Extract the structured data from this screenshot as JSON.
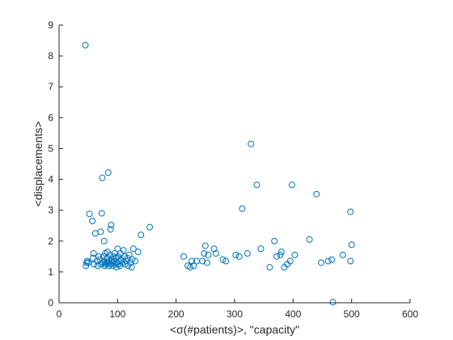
{
  "chart_data": {
    "type": "scatter",
    "title": "",
    "xlabel": "<σ(#patients)>, \"capacity\"",
    "ylabel": "<displacements>",
    "xlim": [
      0,
      600
    ],
    "ylim": [
      0,
      9
    ],
    "xticks": [
      0,
      100,
      200,
      300,
      400,
      500,
      600
    ],
    "yticks": [
      0,
      1,
      2,
      3,
      4,
      5,
      6,
      7,
      8,
      9
    ],
    "grid": false,
    "marker": "open-circle",
    "color": "#0072BD",
    "series": [
      {
        "points": [
          [
            45,
            8.35
          ],
          [
            46,
            1.2
          ],
          [
            47,
            1.3
          ],
          [
            48,
            1.35
          ],
          [
            50,
            1.3
          ],
          [
            52,
            2.88
          ],
          [
            57,
            2.65
          ],
          [
            58,
            1.45
          ],
          [
            59,
            1.6
          ],
          [
            60,
            1.25
          ],
          [
            62,
            2.25
          ],
          [
            65,
            1.35
          ],
          [
            66,
            1.2
          ],
          [
            68,
            1.5
          ],
          [
            70,
            1.4
          ],
          [
            71,
            2.3
          ],
          [
            72,
            1.25
          ],
          [
            73,
            2.9
          ],
          [
            74,
            4.05
          ],
          [
            75,
            1.3
          ],
          [
            76,
            1.5
          ],
          [
            77,
            2.0
          ],
          [
            77,
            1.35
          ],
          [
            78,
            1.2
          ],
          [
            79,
            1.6
          ],
          [
            80,
            1.25
          ],
          [
            81,
            1.3
          ],
          [
            82,
            1.45
          ],
          [
            83,
            1.65
          ],
          [
            84,
            4.22
          ],
          [
            84,
            1.3
          ],
          [
            85,
            1.2
          ],
          [
            86,
            1.35
          ],
          [
            87,
            1.55
          ],
          [
            88,
            2.38
          ],
          [
            88,
            1.25
          ],
          [
            89,
            2.52
          ],
          [
            90,
            1.4
          ],
          [
            91,
            1.3
          ],
          [
            92,
            1.2
          ],
          [
            93,
            1.5
          ],
          [
            94,
            1.35
          ],
          [
            95,
            1.6
          ],
          [
            96,
            1.25
          ],
          [
            97,
            1.45
          ],
          [
            98,
            1.15
          ],
          [
            99,
            1.3
          ],
          [
            100,
            1.75
          ],
          [
            101,
            1.5
          ],
          [
            102,
            1.25
          ],
          [
            103,
            1.35
          ],
          [
            104,
            1.2
          ],
          [
            105,
            1.6
          ],
          [
            106,
            1.4
          ],
          [
            108,
            1.3
          ],
          [
            110,
            1.7
          ],
          [
            112,
            1.5
          ],
          [
            113,
            1.25
          ],
          [
            115,
            1.35
          ],
          [
            117,
            1.45
          ],
          [
            118,
            1.2
          ],
          [
            120,
            1.55
          ],
          [
            122,
            1.3
          ],
          [
            124,
            1.15
          ],
          [
            125,
            1.4
          ],
          [
            127,
            1.75
          ],
          [
            130,
            1.35
          ],
          [
            135,
            1.65
          ],
          [
            140,
            2.2
          ],
          [
            155,
            2.45
          ],
          [
            213,
            1.5
          ],
          [
            220,
            1.2
          ],
          [
            224,
            1.15
          ],
          [
            227,
            1.35
          ],
          [
            230,
            1.2
          ],
          [
            235,
            1.35
          ],
          [
            245,
            1.35
          ],
          [
            248,
            1.6
          ],
          [
            250,
            1.85
          ],
          [
            253,
            1.3
          ],
          [
            255,
            1.55
          ],
          [
            265,
            1.75
          ],
          [
            268,
            1.6
          ],
          [
            280,
            1.4
          ],
          [
            285,
            1.35
          ],
          [
            302,
            1.55
          ],
          [
            308,
            1.5
          ],
          [
            313,
            3.05
          ],
          [
            322,
            1.6
          ],
          [
            328,
            5.15
          ],
          [
            338,
            3.82
          ],
          [
            345,
            1.75
          ],
          [
            360,
            1.15
          ],
          [
            368,
            2.0
          ],
          [
            372,
            1.5
          ],
          [
            378,
            1.55
          ],
          [
            380,
            1.65
          ],
          [
            385,
            1.15
          ],
          [
            390,
            1.25
          ],
          [
            395,
            1.35
          ],
          [
            398,
            3.82
          ],
          [
            403,
            1.55
          ],
          [
            428,
            2.05
          ],
          [
            440,
            3.52
          ],
          [
            448,
            1.3
          ],
          [
            460,
            1.35
          ],
          [
            466,
            1.4
          ],
          [
            468,
            0.02
          ],
          [
            485,
            1.55
          ],
          [
            498,
            2.95
          ],
          [
            498,
            1.35
          ],
          [
            500,
            1.88
          ]
        ]
      }
    ]
  }
}
